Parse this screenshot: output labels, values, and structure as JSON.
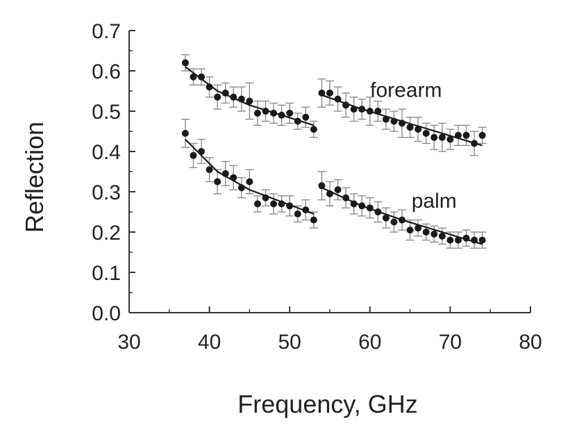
{
  "chart_data": {
    "type": "scatter",
    "title": "",
    "xlabel": "Frequency, GHz",
    "ylabel": "Reflection",
    "xlim": [
      30,
      80
    ],
    "ylim": [
      0.0,
      0.7
    ],
    "xticks": [
      "30",
      "40",
      "50",
      "60",
      "70",
      "80"
    ],
    "yticks": [
      "0.0",
      "0.1",
      "0.2",
      "0.3",
      "0.4",
      "0.5",
      "0.6",
      "0.7"
    ],
    "grid": false,
    "legend": "none",
    "colors": {
      "marker": "#1a1a1a",
      "errorbar": "#8c8c8c",
      "fit": "#1a1a1a",
      "axis": "#333333"
    },
    "series": [
      {
        "name": "forearm",
        "label_pos": {
          "x": 64.5,
          "y": 0.535
        },
        "segments": [
          {
            "x": [
              37,
              38,
              39,
              40,
              41,
              42,
              43,
              44,
              45,
              46,
              47,
              48,
              49,
              50,
              51,
              52,
              53
            ],
            "y": [
              0.62,
              0.585,
              0.585,
              0.56,
              0.535,
              0.545,
              0.535,
              0.53,
              0.525,
              0.495,
              0.5,
              0.495,
              0.49,
              0.495,
              0.475,
              0.485,
              0.455
            ],
            "err": [
              0.02,
              0.02,
              0.02,
              0.025,
              0.03,
              0.025,
              0.025,
              0.03,
              0.045,
              0.03,
              0.025,
              0.025,
              0.025,
              0.025,
              0.02,
              0.025,
              0.02
            ],
            "fit": [
              [
                37,
                0.61
              ],
              [
                41,
                0.55
              ],
              [
                45,
                0.515
              ],
              [
                49,
                0.49
              ],
              [
                53,
                0.465
              ]
            ]
          },
          {
            "x": [
              54,
              55,
              56,
              57,
              58,
              59,
              60,
              61,
              62,
              63,
              64,
              65,
              66,
              67,
              68,
              69,
              70,
              71,
              72,
              73,
              74
            ],
            "y": [
              0.545,
              0.545,
              0.53,
              0.515,
              0.505,
              0.505,
              0.5,
              0.5,
              0.48,
              0.475,
              0.47,
              0.46,
              0.455,
              0.445,
              0.435,
              0.435,
              0.43,
              0.44,
              0.44,
              0.42,
              0.44
            ],
            "err": [
              0.035,
              0.03,
              0.03,
              0.03,
              0.03,
              0.025,
              0.035,
              0.025,
              0.025,
              0.025,
              0.035,
              0.025,
              0.03,
              0.025,
              0.03,
              0.035,
              0.025,
              0.025,
              0.025,
              0.03,
              0.02
            ],
            "fit": [
              [
                54,
                0.54
              ],
              [
                59,
                0.505
              ],
              [
                64,
                0.475
              ],
              [
                69,
                0.445
              ],
              [
                74,
                0.415
              ]
            ]
          }
        ]
      },
      {
        "name": "palm",
        "label_pos": {
          "x": 68.0,
          "y": 0.26
        },
        "segments": [
          {
            "x": [
              37,
              38,
              39,
              40,
              41,
              42,
              43,
              44,
              45,
              46,
              47,
              48,
              49,
              50,
              51,
              52,
              53
            ],
            "y": [
              0.445,
              0.39,
              0.4,
              0.355,
              0.325,
              0.345,
              0.335,
              0.31,
              0.325,
              0.27,
              0.285,
              0.27,
              0.27,
              0.265,
              0.245,
              0.255,
              0.23
            ],
            "err": [
              0.035,
              0.03,
              0.03,
              0.03,
              0.03,
              0.03,
              0.03,
              0.025,
              0.03,
              0.02,
              0.02,
              0.025,
              0.02,
              0.025,
              0.02,
              0.025,
              0.02
            ],
            "fit": [
              [
                37,
                0.43
              ],
              [
                41,
                0.35
              ],
              [
                45,
                0.305
              ],
              [
                49,
                0.275
              ],
              [
                53,
                0.245
              ]
            ]
          },
          {
            "x": [
              54,
              55,
              56,
              57,
              58,
              59,
              60,
              61,
              62,
              63,
              64,
              65,
              66,
              67,
              68,
              69,
              70,
              71,
              72,
              73,
              74
            ],
            "y": [
              0.315,
              0.295,
              0.305,
              0.285,
              0.27,
              0.265,
              0.26,
              0.25,
              0.235,
              0.225,
              0.23,
              0.205,
              0.21,
              0.2,
              0.195,
              0.19,
              0.18,
              0.18,
              0.185,
              0.18,
              0.18
            ],
            "err": [
              0.035,
              0.03,
              0.025,
              0.025,
              0.025,
              0.025,
              0.025,
              0.025,
              0.025,
              0.025,
              0.025,
              0.025,
              0.02,
              0.02,
              0.02,
              0.02,
              0.02,
              0.02,
              0.02,
              0.02,
              0.02
            ],
            "fit": [
              [
                54,
                0.31
              ],
              [
                59,
                0.265
              ],
              [
                64,
                0.23
              ],
              [
                69,
                0.2
              ],
              [
                74,
                0.17
              ]
            ]
          }
        ]
      }
    ]
  }
}
